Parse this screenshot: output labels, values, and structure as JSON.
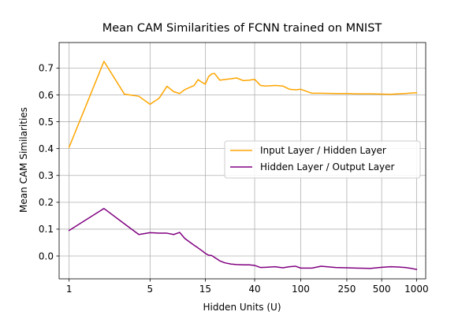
{
  "chart_data": {
    "type": "line",
    "title": "Mean CAM Similarities of FCNN trained on MNIST",
    "xlabel": "Hidden Units (U)",
    "ylabel": "Mean CAM Similarities",
    "x_scale": "log",
    "xlim": [
      0.82,
      1200
    ],
    "ylim": [
      -0.085,
      0.795
    ],
    "x_ticks": [
      1,
      5,
      15,
      40,
      100,
      250,
      500,
      1000
    ],
    "x_tick_labels": [
      "1",
      "5",
      "15",
      "40",
      "100",
      "250",
      "500",
      "1000"
    ],
    "y_ticks": [
      0.0,
      0.1,
      0.2,
      0.3,
      0.4,
      0.5,
      0.6,
      0.7
    ],
    "y_tick_labels": [
      "0.0",
      "0.1",
      "0.2",
      "0.3",
      "0.4",
      "0.5",
      "0.6",
      "0.7"
    ],
    "grid": true,
    "legend_position": "center-right",
    "series": [
      {
        "name": "Input Layer / Hidden Layer",
        "color": "#FFA500",
        "x": [
          1,
          2,
          3,
          4,
          5,
          6,
          7,
          8,
          9,
          10,
          12,
          13,
          14,
          15,
          16,
          17,
          18,
          20,
          22,
          25,
          28,
          32,
          36,
          40,
          45,
          50,
          60,
          70,
          80,
          90,
          100,
          125,
          150,
          200,
          250,
          300,
          400,
          500,
          600,
          700,
          800,
          900,
          1000
        ],
        "y": [
          0.405,
          0.725,
          0.603,
          0.595,
          0.565,
          0.588,
          0.632,
          0.612,
          0.605,
          0.62,
          0.635,
          0.657,
          0.647,
          0.64,
          0.668,
          0.678,
          0.68,
          0.655,
          0.657,
          0.66,
          0.663,
          0.653,
          0.655,
          0.658,
          0.635,
          0.633,
          0.635,
          0.633,
          0.621,
          0.619,
          0.621,
          0.606,
          0.606,
          0.605,
          0.605,
          0.604,
          0.604,
          0.603,
          0.602,
          0.604,
          0.605,
          0.607,
          0.608
        ]
      },
      {
        "name": "Hidden Layer / Output Layer",
        "color": "#800080",
        "x": [
          1,
          2,
          3,
          4,
          5,
          6,
          7,
          8,
          9,
          10,
          12,
          13,
          14,
          15,
          16,
          17,
          18,
          20,
          22,
          25,
          28,
          32,
          36,
          40,
          45,
          50,
          60,
          70,
          80,
          90,
          100,
          125,
          150,
          200,
          250,
          300,
          400,
          500,
          600,
          700,
          800,
          900,
          1000
        ],
        "y": [
          0.095,
          0.177,
          0.12,
          0.08,
          0.087,
          0.085,
          0.085,
          0.08,
          0.088,
          0.065,
          0.04,
          0.03,
          0.02,
          0.01,
          0.003,
          0.002,
          -0.005,
          -0.018,
          -0.025,
          -0.03,
          -0.032,
          -0.033,
          -0.033,
          -0.035,
          -0.043,
          -0.042,
          -0.04,
          -0.044,
          -0.04,
          -0.038,
          -0.045,
          -0.045,
          -0.038,
          -0.043,
          -0.044,
          -0.045,
          -0.046,
          -0.042,
          -0.04,
          -0.041,
          -0.043,
          -0.046,
          -0.05
        ]
      }
    ]
  }
}
